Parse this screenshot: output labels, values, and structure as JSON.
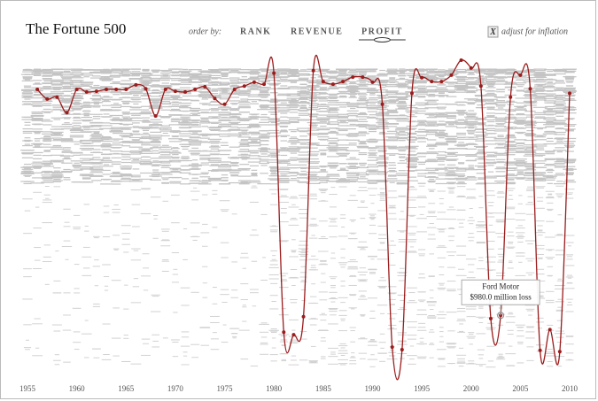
{
  "chart_data": {
    "type": "line",
    "title": "The Fortune 500",
    "order_by": {
      "label": "order by:",
      "options": [
        "RANK",
        "REVENUE",
        "PROFIT"
      ],
      "selected": 2
    },
    "inflation": {
      "checkbox": "X",
      "label": "adjust for inflation"
    },
    "x": [
      1956,
      1957,
      1958,
      1959,
      1960,
      1961,
      1962,
      1963,
      1964,
      1965,
      1966,
      1967,
      1968,
      1969,
      1970,
      1971,
      1972,
      1973,
      1974,
      1975,
      1976,
      1977,
      1978,
      1979,
      1980,
      1981,
      1982,
      1983,
      1984,
      1985,
      1986,
      1987,
      1988,
      1989,
      1990,
      1991,
      1992,
      1993,
      1994,
      1995,
      1996,
      1997,
      1998,
      1999,
      2000,
      2001,
      2002,
      2003,
      2004,
      2005,
      2006,
      2007,
      2008,
      2009,
      2010
    ],
    "series": [
      {
        "name": "Ford Motor",
        "color": "#9b1c1c",
        "values": [
          57,
          72,
          69,
          93,
          57,
          61,
          60,
          57,
          57,
          57,
          50,
          56,
          98,
          57,
          60,
          61,
          57,
          53,
          71,
          80,
          57,
          52,
          46,
          49,
          32,
          432,
          436,
          408,
          28,
          45,
          49,
          45,
          38,
          38,
          46,
          80,
          455,
          459,
          63,
          39,
          45,
          45,
          35,
          12,
          24,
          52,
          411,
          406,
          69,
          35,
          56,
          460,
          428,
          462,
          63
        ]
      }
    ],
    "xlim": [
      1955,
      2010
    ],
    "xticks": [
      1955,
      1960,
      1965,
      1970,
      1975,
      1980,
      1985,
      1990,
      1995,
      2000,
      2005,
      2010
    ],
    "ylim": [
      500,
      1
    ],
    "annotation": {
      "x": 2003,
      "text": "$980.0 million loss"
    }
  }
}
